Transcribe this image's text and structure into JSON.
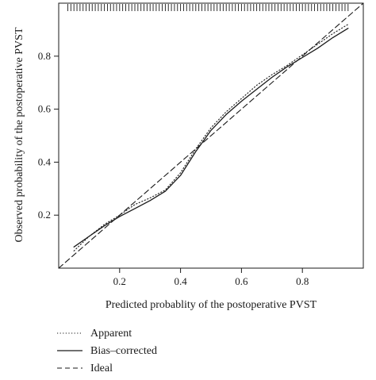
{
  "chart_data": {
    "type": "line",
    "title": "",
    "xlabel": "Predicted probablity of the postoperative PVST",
    "ylabel": "Observed probability of the postoperative PVST",
    "xlim": [
      0.0,
      1.0
    ],
    "ylim": [
      0.0,
      1.0
    ],
    "x_ticks": [
      0.2,
      0.4,
      0.6,
      0.8
    ],
    "y_ticks": [
      0.2,
      0.4,
      0.6,
      0.8
    ],
    "x_tick_labels": [
      "0.2",
      "0.4",
      "0.6",
      "0.8"
    ],
    "y_tick_labels": [
      "0.2",
      "0.4",
      "0.6",
      "0.8"
    ],
    "grid": false,
    "legend_position": "bottom-left",
    "series": [
      {
        "name": "Apparent",
        "style": "dotted",
        "x": [
          0.05,
          0.1,
          0.15,
          0.2,
          0.25,
          0.3,
          0.35,
          0.4,
          0.45,
          0.5,
          0.55,
          0.6,
          0.65,
          0.7,
          0.75,
          0.8,
          0.85,
          0.9,
          0.95
        ],
        "y": [
          0.065,
          0.12,
          0.165,
          0.2,
          0.24,
          0.265,
          0.295,
          0.36,
          0.45,
          0.53,
          0.59,
          0.64,
          0.69,
          0.73,
          0.765,
          0.805,
          0.845,
          0.885,
          0.92
        ]
      },
      {
        "name": "Bias–corrected",
        "style": "solid",
        "x": [
          0.05,
          0.1,
          0.15,
          0.2,
          0.25,
          0.3,
          0.35,
          0.4,
          0.45,
          0.5,
          0.55,
          0.6,
          0.65,
          0.7,
          0.75,
          0.8,
          0.85,
          0.9,
          0.95
        ],
        "y": [
          0.08,
          0.12,
          0.16,
          0.195,
          0.225,
          0.255,
          0.29,
          0.35,
          0.44,
          0.52,
          0.58,
          0.63,
          0.675,
          0.72,
          0.76,
          0.795,
          0.83,
          0.87,
          0.905
        ]
      },
      {
        "name": "Ideal",
        "style": "dashed",
        "x": [
          0.0,
          1.0
        ],
        "y": [
          0.0,
          1.0
        ]
      }
    ],
    "rug_top": [
      0.03,
      0.04,
      0.05,
      0.06,
      0.07,
      0.08,
      0.09,
      0.1,
      0.11,
      0.12,
      0.13,
      0.14,
      0.15,
      0.16,
      0.17,
      0.18,
      0.19,
      0.2,
      0.21,
      0.22,
      0.23,
      0.24,
      0.25,
      0.26,
      0.27,
      0.28,
      0.29,
      0.3,
      0.31,
      0.32,
      0.33,
      0.34,
      0.35,
      0.36,
      0.37,
      0.38,
      0.39,
      0.4,
      0.41,
      0.42,
      0.43,
      0.44,
      0.45,
      0.46,
      0.47,
      0.48,
      0.49,
      0.5,
      0.51,
      0.52,
      0.53,
      0.54,
      0.55,
      0.56,
      0.57,
      0.58,
      0.59,
      0.6,
      0.61,
      0.62,
      0.63,
      0.64,
      0.65,
      0.66,
      0.67,
      0.68,
      0.69,
      0.7,
      0.71,
      0.72,
      0.73,
      0.74,
      0.75,
      0.76,
      0.77,
      0.78,
      0.79,
      0.8,
      0.81,
      0.82,
      0.83,
      0.84,
      0.85,
      0.86,
      0.87,
      0.88,
      0.89,
      0.9,
      0.91,
      0.92,
      0.93,
      0.94,
      0.95
    ],
    "legend": [
      {
        "label": "Apparent",
        "style": "dotted"
      },
      {
        "label": "Bias–corrected",
        "style": "solid"
      },
      {
        "label": "Ideal",
        "style": "dashed"
      }
    ],
    "colors": {
      "line": "#1a1a1a",
      "background": "#ffffff"
    }
  }
}
